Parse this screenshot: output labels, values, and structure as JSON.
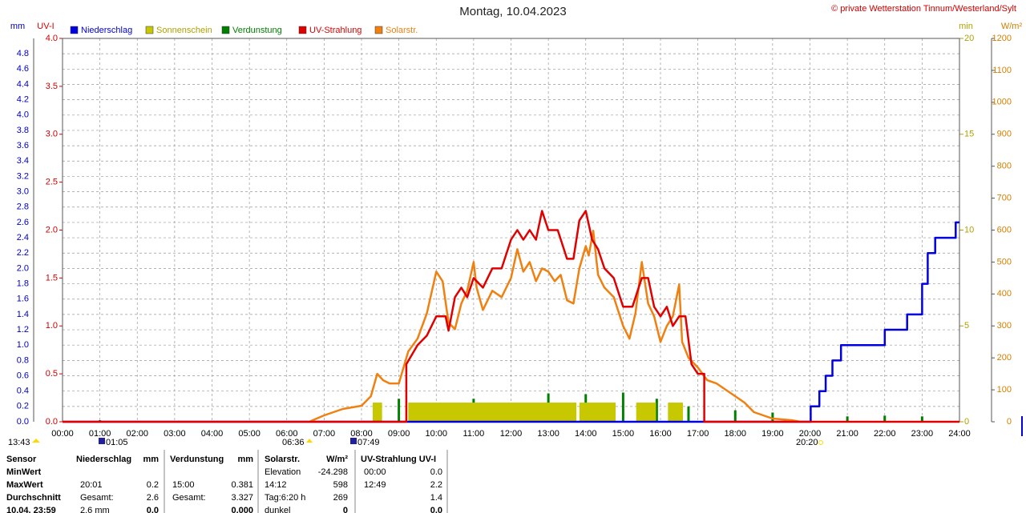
{
  "chart_data": {
    "type": "line",
    "title": "Montag, 10.04.2023",
    "source": "© private Wetterstation Tinnum/Westerland/Sylt",
    "y_label": "mm",
    "uv_label": "UV-I",
    "y2_label": "min",
    "y3_label": "W/m²",
    "grid": true,
    "xlim": [
      0,
      24
    ],
    "xticks": [
      {
        "value": 0,
        "label": "00:00"
      },
      {
        "value": 1,
        "label": "01:00"
      },
      {
        "value": 2,
        "label": "02:00"
      },
      {
        "value": 3,
        "label": "03:00"
      },
      {
        "value": 4,
        "label": "04:00"
      },
      {
        "value": 5,
        "label": "05:00"
      },
      {
        "value": 6,
        "label": "06:00"
      },
      {
        "value": 7,
        "label": "07:00"
      },
      {
        "value": 8,
        "label": "08:00"
      },
      {
        "value": 9,
        "label": "09:00"
      },
      {
        "value": 10,
        "label": "10:00"
      },
      {
        "value": 11,
        "label": "11:00"
      },
      {
        "value": 12,
        "label": "12:00"
      },
      {
        "value": 13,
        "label": "13:00"
      },
      {
        "value": 14,
        "label": "14:00"
      },
      {
        "value": 15,
        "label": "15:00"
      },
      {
        "value": 16,
        "label": "16:00"
      },
      {
        "value": 17,
        "label": "17:00"
      },
      {
        "value": 18,
        "label": "18:00"
      },
      {
        "value": 19,
        "label": "19:00"
      },
      {
        "value": 20,
        "label": "20:00"
      },
      {
        "value": 21,
        "label": "21:00"
      },
      {
        "value": 22,
        "label": "22:00"
      },
      {
        "value": 23,
        "label": "23:00"
      },
      {
        "value": 24,
        "label": "24:00"
      }
    ],
    "ylim": [
      0,
      5
    ],
    "yticks": [
      {
        "value": 0,
        "label": "0.0"
      },
      {
        "value": 0.2,
        "label": "0.2"
      },
      {
        "value": 0.4,
        "label": "0.4"
      },
      {
        "value": 0.6,
        "label": "0.6"
      },
      {
        "value": 0.8,
        "label": "0.8"
      },
      {
        "value": 1,
        "label": "1.0"
      },
      {
        "value": 1.2,
        "label": "1.2"
      },
      {
        "value": 1.4,
        "label": "1.4"
      },
      {
        "value": 1.6,
        "label": "1.6"
      },
      {
        "value": 1.8,
        "label": "1.8"
      },
      {
        "value": 2,
        "label": "2.0"
      },
      {
        "value": 2.2,
        "label": "2.2"
      },
      {
        "value": 2.4,
        "label": "2.4"
      },
      {
        "value": 2.6,
        "label": "2.6"
      },
      {
        "value": 2.8,
        "label": "2.8"
      },
      {
        "value": 3,
        "label": "3.0"
      },
      {
        "value": 3.2,
        "label": "3.2"
      },
      {
        "value": 3.4,
        "label": "3.4"
      },
      {
        "value": 3.6,
        "label": "3.6"
      },
      {
        "value": 3.8,
        "label": "3.8"
      },
      {
        "value": 4,
        "label": "4.0"
      },
      {
        "value": 4.2,
        "label": "4.2"
      },
      {
        "value": 4.4,
        "label": "4.4"
      },
      {
        "value": 4.6,
        "label": "4.6"
      },
      {
        "value": 4.8,
        "label": "4.8"
      }
    ],
    "uvlim": [
      0,
      4
    ],
    "uvticks": [
      {
        "value": 0,
        "label": "0.0"
      },
      {
        "value": 0.5,
        "label": "0.5"
      },
      {
        "value": 1,
        "label": "1.0"
      },
      {
        "value": 1.5,
        "label": "1.5"
      },
      {
        "value": 2,
        "label": "2.0"
      },
      {
        "value": 2.5,
        "label": "2.5"
      },
      {
        "value": 3,
        "label": "3.0"
      },
      {
        "value": 3.5,
        "label": "3.5"
      },
      {
        "value": 4,
        "label": "4.0"
      }
    ],
    "y2lim": [
      0,
      20
    ],
    "y2ticks": [
      0,
      5,
      10,
      15,
      20
    ],
    "y3lim": [
      0,
      1200
    ],
    "y3ticks": [
      0,
      100,
      200,
      300,
      400,
      500,
      600,
      700,
      800,
      900,
      1000,
      1100,
      1200
    ],
    "series": [
      {
        "name": "Niederschlag",
        "color": "#0000e0",
        "axis": "y",
        "style": "line",
        "x": [
          0,
          20.02,
          20.02,
          20.25,
          20.25,
          20.42,
          20.42,
          20.6,
          20.6,
          20.83,
          20.83,
          22.0,
          22.0,
          22.6,
          22.6,
          23.0,
          23.0,
          23.15,
          23.15,
          23.35,
          23.35,
          23.9,
          23.9,
          24
        ],
        "values": [
          0,
          0,
          0.2,
          0.2,
          0.4,
          0.4,
          0.6,
          0.6,
          0.8,
          0.8,
          1.0,
          1.0,
          1.2,
          1.2,
          1.4,
          1.4,
          1.8,
          1.8,
          2.2,
          2.2,
          2.4,
          2.4,
          2.6,
          2.6
        ]
      },
      {
        "name": "Sonnenschein",
        "color": "#c8c800",
        "axis": "y2",
        "style": "blocks",
        "x_start": [
          8.3,
          9.25,
          13.83,
          15.35,
          16.2
        ],
        "x_end": [
          8.55,
          13.75,
          14.8,
          15.88,
          16.6
        ],
        "values": [
          1,
          1,
          1,
          1,
          1
        ]
      },
      {
        "name": "Verdunstung",
        "color": "#008000",
        "axis": "y",
        "style": "spikes",
        "x": [
          1,
          9,
          10,
          11,
          12,
          13,
          14,
          15,
          15.9,
          16.75,
          18,
          19,
          21,
          22,
          23
        ],
        "values": [
          0.02,
          0.3,
          0.18,
          0.3,
          0.23,
          0.37,
          0.36,
          0.381,
          0.3,
          0.2,
          0.15,
          0.12,
          0.07,
          0.08,
          0.07
        ]
      },
      {
        "name": "UV-Strahlung",
        "color": "#e00000",
        "axis": "uv",
        "style": "line",
        "x": [
          0,
          9.2,
          9.2,
          9.5,
          9.75,
          10,
          10.25,
          10.33,
          10.5,
          10.67,
          10.83,
          11,
          11.25,
          11.5,
          11.75,
          12,
          12.17,
          12.33,
          12.5,
          12.67,
          12.83,
          13,
          13.25,
          13.5,
          13.67,
          13.83,
          14,
          14.17,
          14.33,
          14.5,
          14.75,
          15,
          15.25,
          15.5,
          15.67,
          15.83,
          16,
          16.17,
          16.33,
          16.5,
          16.67,
          16.83,
          17,
          17.17,
          17.17,
          24
        ],
        "values": [
          0,
          0,
          0.6,
          0.8,
          0.9,
          1.1,
          1.1,
          0.95,
          1.3,
          1.4,
          1.3,
          1.5,
          1.4,
          1.6,
          1.6,
          1.9,
          2.0,
          1.9,
          2.0,
          1.9,
          2.2,
          2.0,
          2.0,
          1.7,
          1.7,
          2.1,
          2.2,
          1.9,
          1.8,
          1.6,
          1.5,
          1.2,
          1.2,
          1.5,
          1.5,
          1.2,
          1.1,
          1.2,
          1.0,
          1.1,
          1.1,
          0.6,
          0.5,
          0.5,
          0,
          0
        ]
      },
      {
        "name": "Solarstr.",
        "color": "#f08010",
        "axis": "y3",
        "style": "line",
        "x": [
          6.6,
          7,
          7.5,
          8,
          8.25,
          8.42,
          8.58,
          8.75,
          9,
          9.25,
          9.5,
          9.75,
          10,
          10.17,
          10.33,
          10.5,
          10.67,
          10.83,
          11,
          11.08,
          11.25,
          11.5,
          11.75,
          12,
          12.17,
          12.33,
          12.5,
          12.67,
          12.83,
          13,
          13.17,
          13.33,
          13.5,
          13.67,
          13.83,
          14,
          14.08,
          14.2,
          14.33,
          14.5,
          14.75,
          15,
          15.17,
          15.33,
          15.5,
          15.67,
          15.83,
          16,
          16.17,
          16.33,
          16.5,
          16.58,
          16.75,
          17,
          17.25,
          17.5,
          17.75,
          18,
          18.25,
          18.5,
          18.75,
          19,
          19.5,
          19.75
        ],
        "values": [
          0,
          20,
          40,
          50,
          80,
          150,
          130,
          120,
          120,
          220,
          260,
          340,
          470,
          440,
          310,
          290,
          370,
          410,
          500,
          420,
          350,
          410,
          390,
          450,
          540,
          470,
          500,
          440,
          480,
          470,
          440,
          460,
          380,
          370,
          480,
          550,
          520,
          598,
          460,
          420,
          390,
          300,
          260,
          340,
          500,
          370,
          330,
          250,
          300,
          330,
          430,
          250,
          200,
          170,
          130,
          120,
          100,
          80,
          60,
          30,
          20,
          10,
          5,
          0
        ]
      }
    ],
    "events": [
      "13:43",
      "01:05",
      "06:36",
      "07:49",
      "20:20"
    ]
  },
  "table": {
    "header": [
      "Sensor",
      "Niederschlag",
      "mm",
      "Verdunstung",
      "mm",
      "Solarstr.",
      "W/m²",
      "UV-Strahlung UV-I"
    ],
    "rows": [
      [
        "MinWert",
        null,
        null,
        null,
        null,
        "Elevation",
        "-24.298",
        "00:00",
        "0.0"
      ],
      [
        "MaxWert",
        "20:01",
        "0.2",
        "15:00",
        "0.381",
        "14:12",
        "598",
        "12:49",
        "2.2"
      ],
      [
        "Durchschnitt",
        "Gesamt:",
        "2.6",
        "Gesamt:",
        "3.327",
        "Tag:6:20 h",
        "269",
        null,
        "1.4"
      ],
      [
        "10.04. 23:59",
        "2.6 mm",
        "0.0",
        null,
        "0.000",
        "dunkel",
        "0",
        null,
        "0.0"
      ]
    ]
  }
}
